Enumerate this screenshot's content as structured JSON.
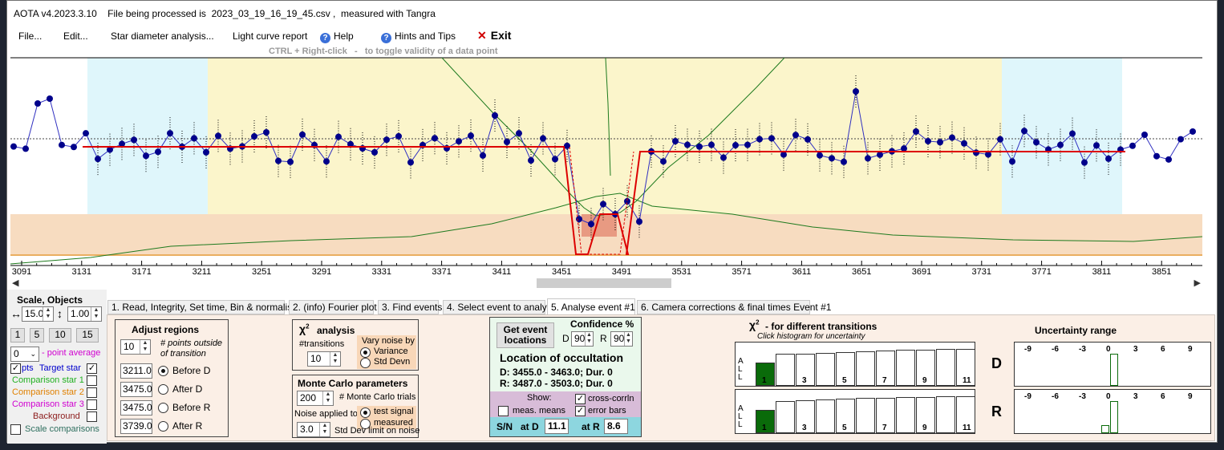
{
  "titlebar": {
    "title": "AOTA v4.2023.3.10    File being processed is  2023_03_19_16_19_45.csv ,  measured with Tangra"
  },
  "menu": {
    "file": "File...",
    "edit": "Edit...",
    "star_diameter": "Star diameter analysis...",
    "light_curve": "Light curve report",
    "help": "Help",
    "hints": "Hints and Tips",
    "exit": "Exit"
  },
  "hint_text": "CTRL + Right-click   -   to toggle validity of a data point",
  "plot": {
    "x_ticks": [
      "3091",
      "3131",
      "3171",
      "3211",
      "3251",
      "3291",
      "3331",
      "3371",
      "3411",
      "3451",
      "3491",
      "3531",
      "3571",
      "3611",
      "3651",
      "3691",
      "3731",
      "3771",
      "3811",
      "3851"
    ],
    "colors": {
      "outside": "#dff6fb",
      "inside": "#fbf5cb",
      "background": "#f7dcc0",
      "model": "#dd0000",
      "points": "#00008b",
      "green": "#1e7a1e"
    }
  },
  "tabs": [
    "1.  Read, Integrity, Set time, Bin & normalise",
    "2.  (info)  Fourier plot",
    "3. Find events",
    "4.  Select event to analyse",
    "5.  Analyse event #1",
    "6. Camera corrections & final times Event #1"
  ],
  "left_panel": {
    "scale_title": "Scale,  Objects",
    "scale_x": "15.0",
    "scale_y": "1.00",
    "btns": [
      "1",
      "5",
      "10",
      "15"
    ],
    "point_avg_value": "0",
    "point_avg_label": "- point average",
    "pts": "pts",
    "target": "Target star",
    "comp1": "Comparison star 1",
    "comp2": "Comparison star 2",
    "comp3": "Comparison star 3",
    "background": "Background",
    "scale_comparisons": "Scale comparisons"
  },
  "adjust": {
    "title": "Adjust regions",
    "points_outside_value": "10",
    "points_outside_label": "# points outside",
    "points_outside_label2": "of transition",
    "rows": [
      {
        "value": "3211.0",
        "label": "Before D"
      },
      {
        "value": "3475.0",
        "label": "After D"
      },
      {
        "value": "3475.0",
        "label": "Before R"
      },
      {
        "value": "3739.0",
        "label": "After R"
      }
    ]
  },
  "chi2": {
    "title": "analysis",
    "transitions_label": "#transitions",
    "transitions_value": "10",
    "vary_noise": "Vary noise by",
    "variance": "Variance",
    "std_devn": "Std Devn"
  },
  "monte_carlo": {
    "title": "Monte Carlo parameters",
    "trials_value": "200",
    "trials_label": "# Monte Carlo trials",
    "noise_applied": "Noise applied to",
    "test_signal": "test signal",
    "measured": "measured",
    "std_limit_value": "3.0",
    "std_limit_label": "Std Dev limit on noise"
  },
  "event": {
    "get_locations": "Get event locations",
    "confidence": "Confidence %",
    "d_label": "D",
    "d_value": "90",
    "r_label": "R",
    "r_value": "90",
    "location_title": "Location of occultation",
    "d_line": "D: 3455.0 - 3463.0; Dur. 0",
    "r_line": "R: 3487.0 - 3503.0; Dur. 0",
    "show": "Show:",
    "cross_corr": "cross-corrln",
    "meas_means": "meas. means",
    "error_bars": "error bars",
    "sn": "S/N",
    "at_d": "at D",
    "sn_d": "11.1",
    "at_r": "at R",
    "sn_r": "8.6"
  },
  "chi2_hist": {
    "title": "-  for different transitions",
    "subtitle": "Click histogram for uncertainty",
    "all_label": [
      "A",
      "L",
      "L"
    ],
    "ticks": [
      "1",
      "3",
      "5",
      "7",
      "9",
      "11"
    ],
    "d": "D",
    "r": "R",
    "d_heights": [
      0.62,
      0.86,
      0.88,
      0.9,
      0.92,
      0.93,
      0.95,
      0.97,
      0.98,
      0.99,
      1.0
    ],
    "r_heights": [
      0.62,
      0.88,
      0.9,
      0.92,
      0.94,
      0.95,
      0.96,
      0.97,
      0.98,
      0.99,
      1.0
    ]
  },
  "uncertainty": {
    "title": "Uncertainty range",
    "ticks": [
      "-9",
      "-6",
      "-3",
      "0",
      "3",
      "6",
      "9"
    ],
    "d_bars": [
      {
        "offset": 0,
        "level": 1.0
      }
    ],
    "r_bars": [
      {
        "offset": -1,
        "level": 0.25
      },
      {
        "offset": 0,
        "level": 1.0
      }
    ]
  }
}
